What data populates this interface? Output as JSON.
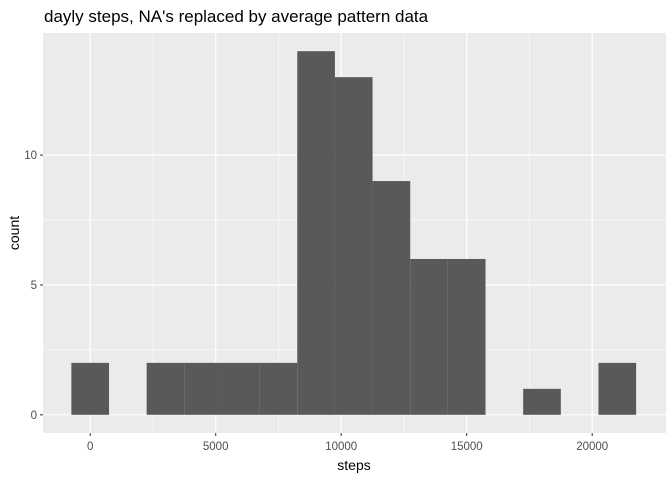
{
  "chart_data": {
    "type": "bar",
    "title": "dayly steps, NA's replaced by average pattern data",
    "xlabel": "steps",
    "ylabel": "count",
    "xlim": [
      -1880,
      22940
    ],
    "ylim": [
      -0.7,
      14.7
    ],
    "x_ticks": [
      0,
      5000,
      10000,
      15000,
      20000
    ],
    "x_tick_labels": [
      "0",
      "5000",
      "10000",
      "15000",
      "20000"
    ],
    "y_ticks": [
      0,
      5,
      10
    ],
    "y_tick_labels": [
      "0",
      "5",
      "10"
    ],
    "grid": true,
    "bins": [
      {
        "x0": -750,
        "x1": 750,
        "count": 2
      },
      {
        "x0": 750,
        "x1": 2250,
        "count": 0
      },
      {
        "x0": 2250,
        "x1": 3750,
        "count": 2
      },
      {
        "x0": 3750,
        "x1": 5250,
        "count": 2
      },
      {
        "x0": 5250,
        "x1": 6750,
        "count": 2
      },
      {
        "x0": 6750,
        "x1": 8250,
        "count": 2
      },
      {
        "x0": 8250,
        "x1": 9750,
        "count": 14
      },
      {
        "x0": 9750,
        "x1": 11250,
        "count": 13
      },
      {
        "x0": 11250,
        "x1": 12750,
        "count": 9
      },
      {
        "x0": 12750,
        "x1": 14250,
        "count": 6
      },
      {
        "x0": 14250,
        "x1": 15750,
        "count": 6
      },
      {
        "x0": 15750,
        "x1": 17250,
        "count": 0
      },
      {
        "x0": 17250,
        "x1": 18750,
        "count": 1
      },
      {
        "x0": 18750,
        "x1": 20250,
        "count": 0
      },
      {
        "x0": 20250,
        "x1": 21750,
        "count": 2
      }
    ],
    "colors": {
      "panel": "#ebebeb",
      "grid_major": "#ffffff",
      "bar_fill": "#595959",
      "tick": "#333333"
    }
  }
}
